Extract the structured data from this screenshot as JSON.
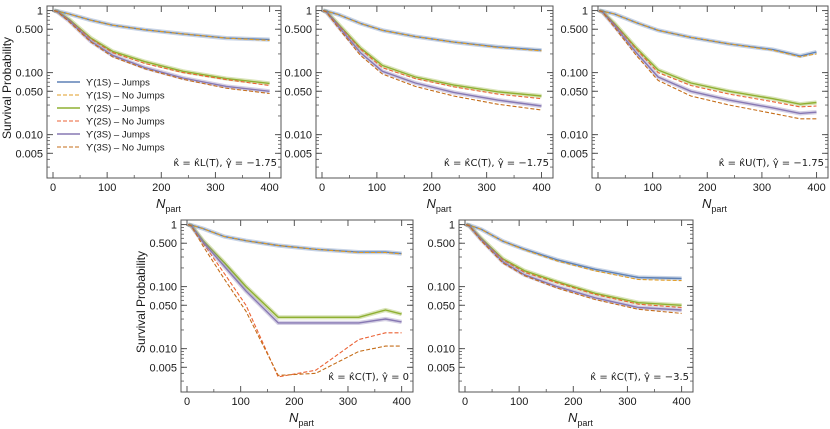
{
  "colors": {
    "Y1S_jumps": "#5e81b5",
    "Y1S_nojumps": "#e19c24",
    "Y2S_jumps": "#8fb032",
    "Y2S_nojumps": "#eb6235",
    "Y3S_jumps": "#8778b3",
    "Y3S_nojumps": "#c56e1a"
  },
  "legend": [
    {
      "label": "ϒ(1S) – Jumps",
      "key": "Y1S_jumps",
      "dash": false
    },
    {
      "label": "ϒ(1S) – No Jumps",
      "key": "Y1S_nojumps",
      "dash": true
    },
    {
      "label": "ϒ(2S) – Jumps",
      "key": "Y2S_jumps",
      "dash": false
    },
    {
      "label": "ϒ(2S) – No Jumps",
      "key": "Y2S_nojumps",
      "dash": true
    },
    {
      "label": "ϒ(3S) – Jumps",
      "key": "Y3S_jumps",
      "dash": false
    },
    {
      "label": "ϒ(3S) – No Jumps",
      "key": "Y3S_nojumps",
      "dash": true
    }
  ],
  "chart_data": [
    {
      "type": "line",
      "ylabel": "Survival Probability",
      "xlabel_main": "N",
      "xlabel_sub": "part",
      "annotation": "κ̂ = κ̂L(T),  γ̂ = −1.75",
      "xlim": [
        0,
        410
      ],
      "ylim": [
        0.002,
        1.1
      ],
      "yscale": "log",
      "xticks": [
        0,
        100,
        200,
        300,
        400
      ],
      "yticks": [
        "1",
        "0.500",
        "0.100",
        "0.050",
        "0.010",
        "0.005"
      ],
      "ytick_values": [
        1,
        0.5,
        0.1,
        0.05,
        0.01,
        0.005
      ],
      "x": [
        2,
        8,
        30,
        70,
        110,
        170,
        240,
        320,
        400
      ],
      "series": [
        {
          "key": "Y1S_jumps",
          "dash": false,
          "values": [
            1.0,
            0.98,
            0.88,
            0.7,
            0.58,
            0.49,
            0.42,
            0.36,
            0.34
          ]
        },
        {
          "key": "Y1S_nojumps",
          "dash": true,
          "values": [
            1.0,
            0.98,
            0.88,
            0.7,
            0.58,
            0.49,
            0.42,
            0.36,
            0.33
          ]
        },
        {
          "key": "Y2S_jumps",
          "dash": false,
          "values": [
            1.0,
            0.97,
            0.72,
            0.36,
            0.22,
            0.15,
            0.105,
            0.08,
            0.067
          ]
        },
        {
          "key": "Y2S_nojumps",
          "dash": true,
          "values": [
            1.0,
            0.97,
            0.7,
            0.35,
            0.21,
            0.14,
            0.1,
            0.077,
            0.062
          ]
        },
        {
          "key": "Y3S_jumps",
          "dash": false,
          "values": [
            1.0,
            0.96,
            0.68,
            0.32,
            0.19,
            0.12,
            0.082,
            0.06,
            0.05
          ]
        },
        {
          "key": "Y3S_nojumps",
          "dash": true,
          "values": [
            1.0,
            0.96,
            0.66,
            0.31,
            0.18,
            0.115,
            0.078,
            0.056,
            0.046
          ]
        }
      ]
    },
    {
      "type": "line",
      "ylabel": "",
      "xlabel_main": "N",
      "xlabel_sub": "part",
      "annotation": "κ̂ = κ̂C(T),  γ̂ = −1.75",
      "xlim": [
        0,
        410
      ],
      "ylim": [
        0.002,
        1.1
      ],
      "yscale": "log",
      "xticks": [
        0,
        100,
        200,
        300,
        400
      ],
      "yticks": [
        "1",
        "0.500",
        "0.100",
        "0.050",
        "0.010",
        "0.005"
      ],
      "ytick_values": [
        1,
        0.5,
        0.1,
        0.05,
        0.01,
        0.005
      ],
      "x": [
        2,
        8,
        30,
        70,
        110,
        170,
        240,
        320,
        400
      ],
      "series": [
        {
          "key": "Y1S_jumps",
          "dash": false,
          "values": [
            1.0,
            0.98,
            0.86,
            0.62,
            0.48,
            0.38,
            0.31,
            0.26,
            0.23
          ]
        },
        {
          "key": "Y1S_nojumps",
          "dash": true,
          "values": [
            1.0,
            0.98,
            0.86,
            0.62,
            0.48,
            0.38,
            0.31,
            0.255,
            0.225
          ]
        },
        {
          "key": "Y2S_jumps",
          "dash": false,
          "values": [
            1.0,
            0.96,
            0.6,
            0.25,
            0.13,
            0.085,
            0.063,
            0.049,
            0.042
          ]
        },
        {
          "key": "Y2S_nojumps",
          "dash": true,
          "values": [
            1.0,
            0.96,
            0.58,
            0.24,
            0.12,
            0.08,
            0.059,
            0.045,
            0.038
          ]
        },
        {
          "key": "Y3S_jumps",
          "dash": false,
          "values": [
            1.0,
            0.95,
            0.55,
            0.21,
            0.105,
            0.068,
            0.048,
            0.036,
            0.029
          ]
        },
        {
          "key": "Y3S_nojumps",
          "dash": true,
          "values": [
            1.0,
            0.95,
            0.52,
            0.19,
            0.095,
            0.06,
            0.042,
            0.031,
            0.025
          ]
        }
      ]
    },
    {
      "type": "line",
      "ylabel": "",
      "xlabel_main": "N",
      "xlabel_sub": "part",
      "annotation": "κ̂ = κ̂U(T),  γ̂ = −1.75",
      "xlim": [
        0,
        410
      ],
      "ylim": [
        0.002,
        1.1
      ],
      "yscale": "log",
      "xticks": [
        0,
        100,
        200,
        300,
        400
      ],
      "yticks": [
        "1",
        "0.500",
        "0.100",
        "0.050",
        "0.010",
        "0.005"
      ],
      "ytick_values": [
        1,
        0.5,
        0.1,
        0.05,
        0.01,
        0.005
      ],
      "x": [
        2,
        8,
        30,
        70,
        110,
        170,
        240,
        320,
        370,
        400
      ],
      "series": [
        {
          "key": "Y1S_jumps",
          "dash": false,
          "values": [
            1.0,
            0.98,
            0.88,
            0.64,
            0.48,
            0.37,
            0.29,
            0.235,
            0.185,
            0.215
          ]
        },
        {
          "key": "Y1S_nojumps",
          "dash": true,
          "values": [
            1.0,
            0.98,
            0.88,
            0.64,
            0.48,
            0.37,
            0.29,
            0.23,
            0.18,
            0.2
          ]
        },
        {
          "key": "Y2S_jumps",
          "dash": false,
          "values": [
            1.0,
            0.96,
            0.62,
            0.25,
            0.11,
            0.068,
            0.05,
            0.038,
            0.031,
            0.033
          ]
        },
        {
          "key": "Y2S_nojumps",
          "dash": true,
          "values": [
            1.0,
            0.96,
            0.6,
            0.24,
            0.1,
            0.062,
            0.045,
            0.034,
            0.028,
            0.029
          ]
        },
        {
          "key": "Y3S_jumps",
          "dash": false,
          "values": [
            1.0,
            0.95,
            0.57,
            0.21,
            0.085,
            0.05,
            0.036,
            0.027,
            0.022,
            0.023
          ]
        },
        {
          "key": "Y3S_nojumps",
          "dash": true,
          "values": [
            1.0,
            0.95,
            0.54,
            0.19,
            0.075,
            0.042,
            0.03,
            0.022,
            0.018,
            0.018
          ]
        }
      ]
    },
    {
      "type": "line",
      "ylabel": "Survival Probability",
      "xlabel_main": "N",
      "xlabel_sub": "part",
      "annotation": "κ̂ = κ̂C(T),  γ̂ = 0",
      "xlim": [
        0,
        410
      ],
      "ylim": [
        0.002,
        1.1
      ],
      "yscale": "log",
      "xticks": [
        0,
        100,
        200,
        300,
        400
      ],
      "yticks": [
        "1",
        "0.500",
        "0.100",
        "0.050",
        "0.010",
        "0.005"
      ],
      "ytick_values": [
        1,
        0.5,
        0.1,
        0.05,
        0.01,
        0.005
      ],
      "x": [
        2,
        8,
        30,
        70,
        110,
        170,
        240,
        320,
        370,
        400
      ],
      "series": [
        {
          "key": "Y1S_jumps",
          "dash": false,
          "values": [
            1.0,
            0.98,
            0.86,
            0.64,
            0.55,
            0.46,
            0.4,
            0.36,
            0.36,
            0.34
          ]
        },
        {
          "key": "Y1S_nojumps",
          "dash": true,
          "values": [
            1.0,
            0.98,
            0.86,
            0.64,
            0.55,
            0.46,
            0.4,
            0.355,
            0.355,
            0.335
          ]
        },
        {
          "key": "Y2S_jumps",
          "dash": false,
          "values": [
            1.0,
            0.96,
            0.55,
            0.24,
            0.1,
            0.032,
            0.032,
            0.032,
            0.042,
            0.036
          ]
        },
        {
          "key": "Y2S_nojumps",
          "dash": true,
          "values": [
            1.0,
            0.96,
            0.5,
            0.16,
            0.05,
            0.0035,
            0.0045,
            0.014,
            0.018,
            0.018
          ]
        },
        {
          "key": "Y3S_jumps",
          "dash": false,
          "values": [
            1.0,
            0.95,
            0.52,
            0.21,
            0.085,
            0.026,
            0.026,
            0.026,
            0.03,
            0.027
          ]
        },
        {
          "key": "Y3S_nojumps",
          "dash": true,
          "values": [
            1.0,
            0.95,
            0.45,
            0.13,
            0.04,
            0.0037,
            0.004,
            0.009,
            0.011,
            0.011
          ]
        }
      ]
    },
    {
      "type": "line",
      "ylabel": "",
      "xlabel_main": "N",
      "xlabel_sub": "part",
      "annotation": "κ̂ = κ̂C(T),  γ̂ = −3.5",
      "xlim": [
        0,
        410
      ],
      "ylim": [
        0.002,
        1.1
      ],
      "yscale": "log",
      "xticks": [
        0,
        100,
        200,
        300,
        400
      ],
      "yticks": [
        "1",
        "0.500",
        "0.100",
        "0.050",
        "0.010",
        "0.005"
      ],
      "ytick_values": [
        1,
        0.5,
        0.1,
        0.05,
        0.01,
        0.005
      ],
      "x": [
        2,
        8,
        30,
        70,
        110,
        170,
        240,
        320,
        400
      ],
      "series": [
        {
          "key": "Y1S_jumps",
          "dash": false,
          "values": [
            1.0,
            0.98,
            0.84,
            0.54,
            0.4,
            0.27,
            0.19,
            0.14,
            0.135
          ]
        },
        {
          "key": "Y1S_nojumps",
          "dash": true,
          "values": [
            1.0,
            0.98,
            0.84,
            0.54,
            0.39,
            0.26,
            0.18,
            0.13,
            0.125
          ]
        },
        {
          "key": "Y2S_jumps",
          "dash": false,
          "values": [
            1.0,
            0.96,
            0.6,
            0.28,
            0.18,
            0.12,
            0.078,
            0.055,
            0.05
          ]
        },
        {
          "key": "Y2S_nojumps",
          "dash": true,
          "values": [
            1.0,
            0.96,
            0.58,
            0.27,
            0.17,
            0.115,
            0.075,
            0.052,
            0.046
          ]
        },
        {
          "key": "Y3S_jumps",
          "dash": false,
          "values": [
            1.0,
            0.95,
            0.57,
            0.25,
            0.155,
            0.1,
            0.066,
            0.046,
            0.042
          ]
        },
        {
          "key": "Y3S_nojumps",
          "dash": true,
          "values": [
            1.0,
            0.95,
            0.55,
            0.24,
            0.15,
            0.095,
            0.062,
            0.043,
            0.037
          ]
        }
      ]
    }
  ]
}
